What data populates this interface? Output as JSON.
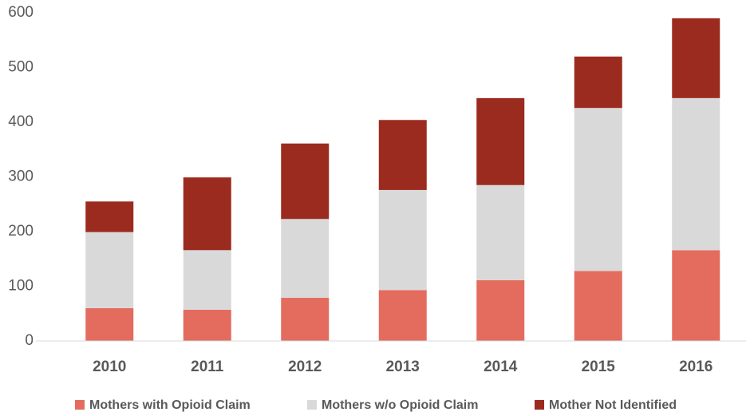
{
  "chart_data": {
    "type": "stacked_bar",
    "categories": [
      "2010",
      "2011",
      "2012",
      "2013",
      "2014",
      "2015",
      "2016"
    ],
    "series": [
      {
        "name": "Mothers with Opioid Claim",
        "color": "#e46c5f",
        "values": [
          60,
          57,
          79,
          93,
          111,
          128,
          166
        ]
      },
      {
        "name": "Mothers w/o Opioid Claim",
        "color": "#d9d9d9",
        "values": [
          139,
          109,
          144,
          183,
          174,
          298,
          278
        ]
      },
      {
        "name": "Mother Not Identified",
        "color": "#9c2b1f",
        "values": [
          56,
          133,
          138,
          128,
          159,
          94,
          146
        ]
      }
    ],
    "ylim": [
      0,
      600
    ],
    "yticks": [
      0,
      100,
      200,
      300,
      400,
      500,
      600
    ],
    "grid": false,
    "legend": "bottom"
  }
}
